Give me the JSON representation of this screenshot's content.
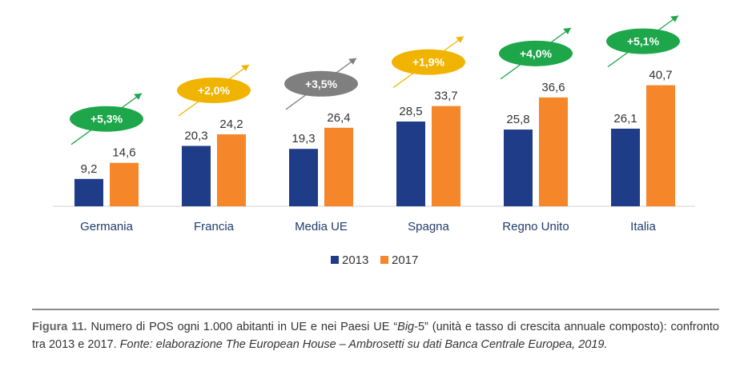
{
  "chart_data": {
    "type": "bar",
    "categories": [
      "Germania",
      "Francia",
      "Media UE",
      "Spagna",
      "Regno Unito",
      "Italia"
    ],
    "series": [
      {
        "name": "2013",
        "values": [
          9.2,
          20.3,
          19.3,
          28.5,
          25.8,
          26.1
        ],
        "value_labels": [
          "9,2",
          "20,3",
          "19,3",
          "28,5",
          "25,8",
          "26,1"
        ]
      },
      {
        "name": "2017",
        "values": [
          14.6,
          24.2,
          26.4,
          33.7,
          36.6,
          40.7
        ],
        "value_labels": [
          "14,6",
          "24,2",
          "26,4",
          "33,7",
          "36,6",
          "40,7"
        ]
      }
    ],
    "growth": [
      {
        "label": "+5,3%",
        "color": "#1ea64a"
      },
      {
        "label": "+2,0%",
        "color": "#f0b400"
      },
      {
        "label": "+3,5%",
        "color": "#7f7f7f"
      },
      {
        "label": "+1,9%",
        "color": "#f0b400"
      },
      {
        "label": "+4,0%",
        "color": "#1ea64a"
      },
      {
        "label": "+5,1%",
        "color": "#1ea64a"
      }
    ],
    "colors": {
      "2013": "#1f3c88",
      "2017": "#f5862a"
    },
    "ylim": [
      0,
      45
    ],
    "legend_position": "bottom",
    "grid": false
  },
  "caption": {
    "label": "Figura 11.",
    "text_1": " Numero di POS ogni 1.000 abitanti in UE e nei Paesi UE “",
    "text_big": "Big",
    "text_2": "-5” (unità e tasso di crescita annuale composto): confronto tra 2013 e 2017. ",
    "source": "Fonte: elaborazione The European House – Ambrosetti su dati Banca Centrale Europea, 2019."
  }
}
